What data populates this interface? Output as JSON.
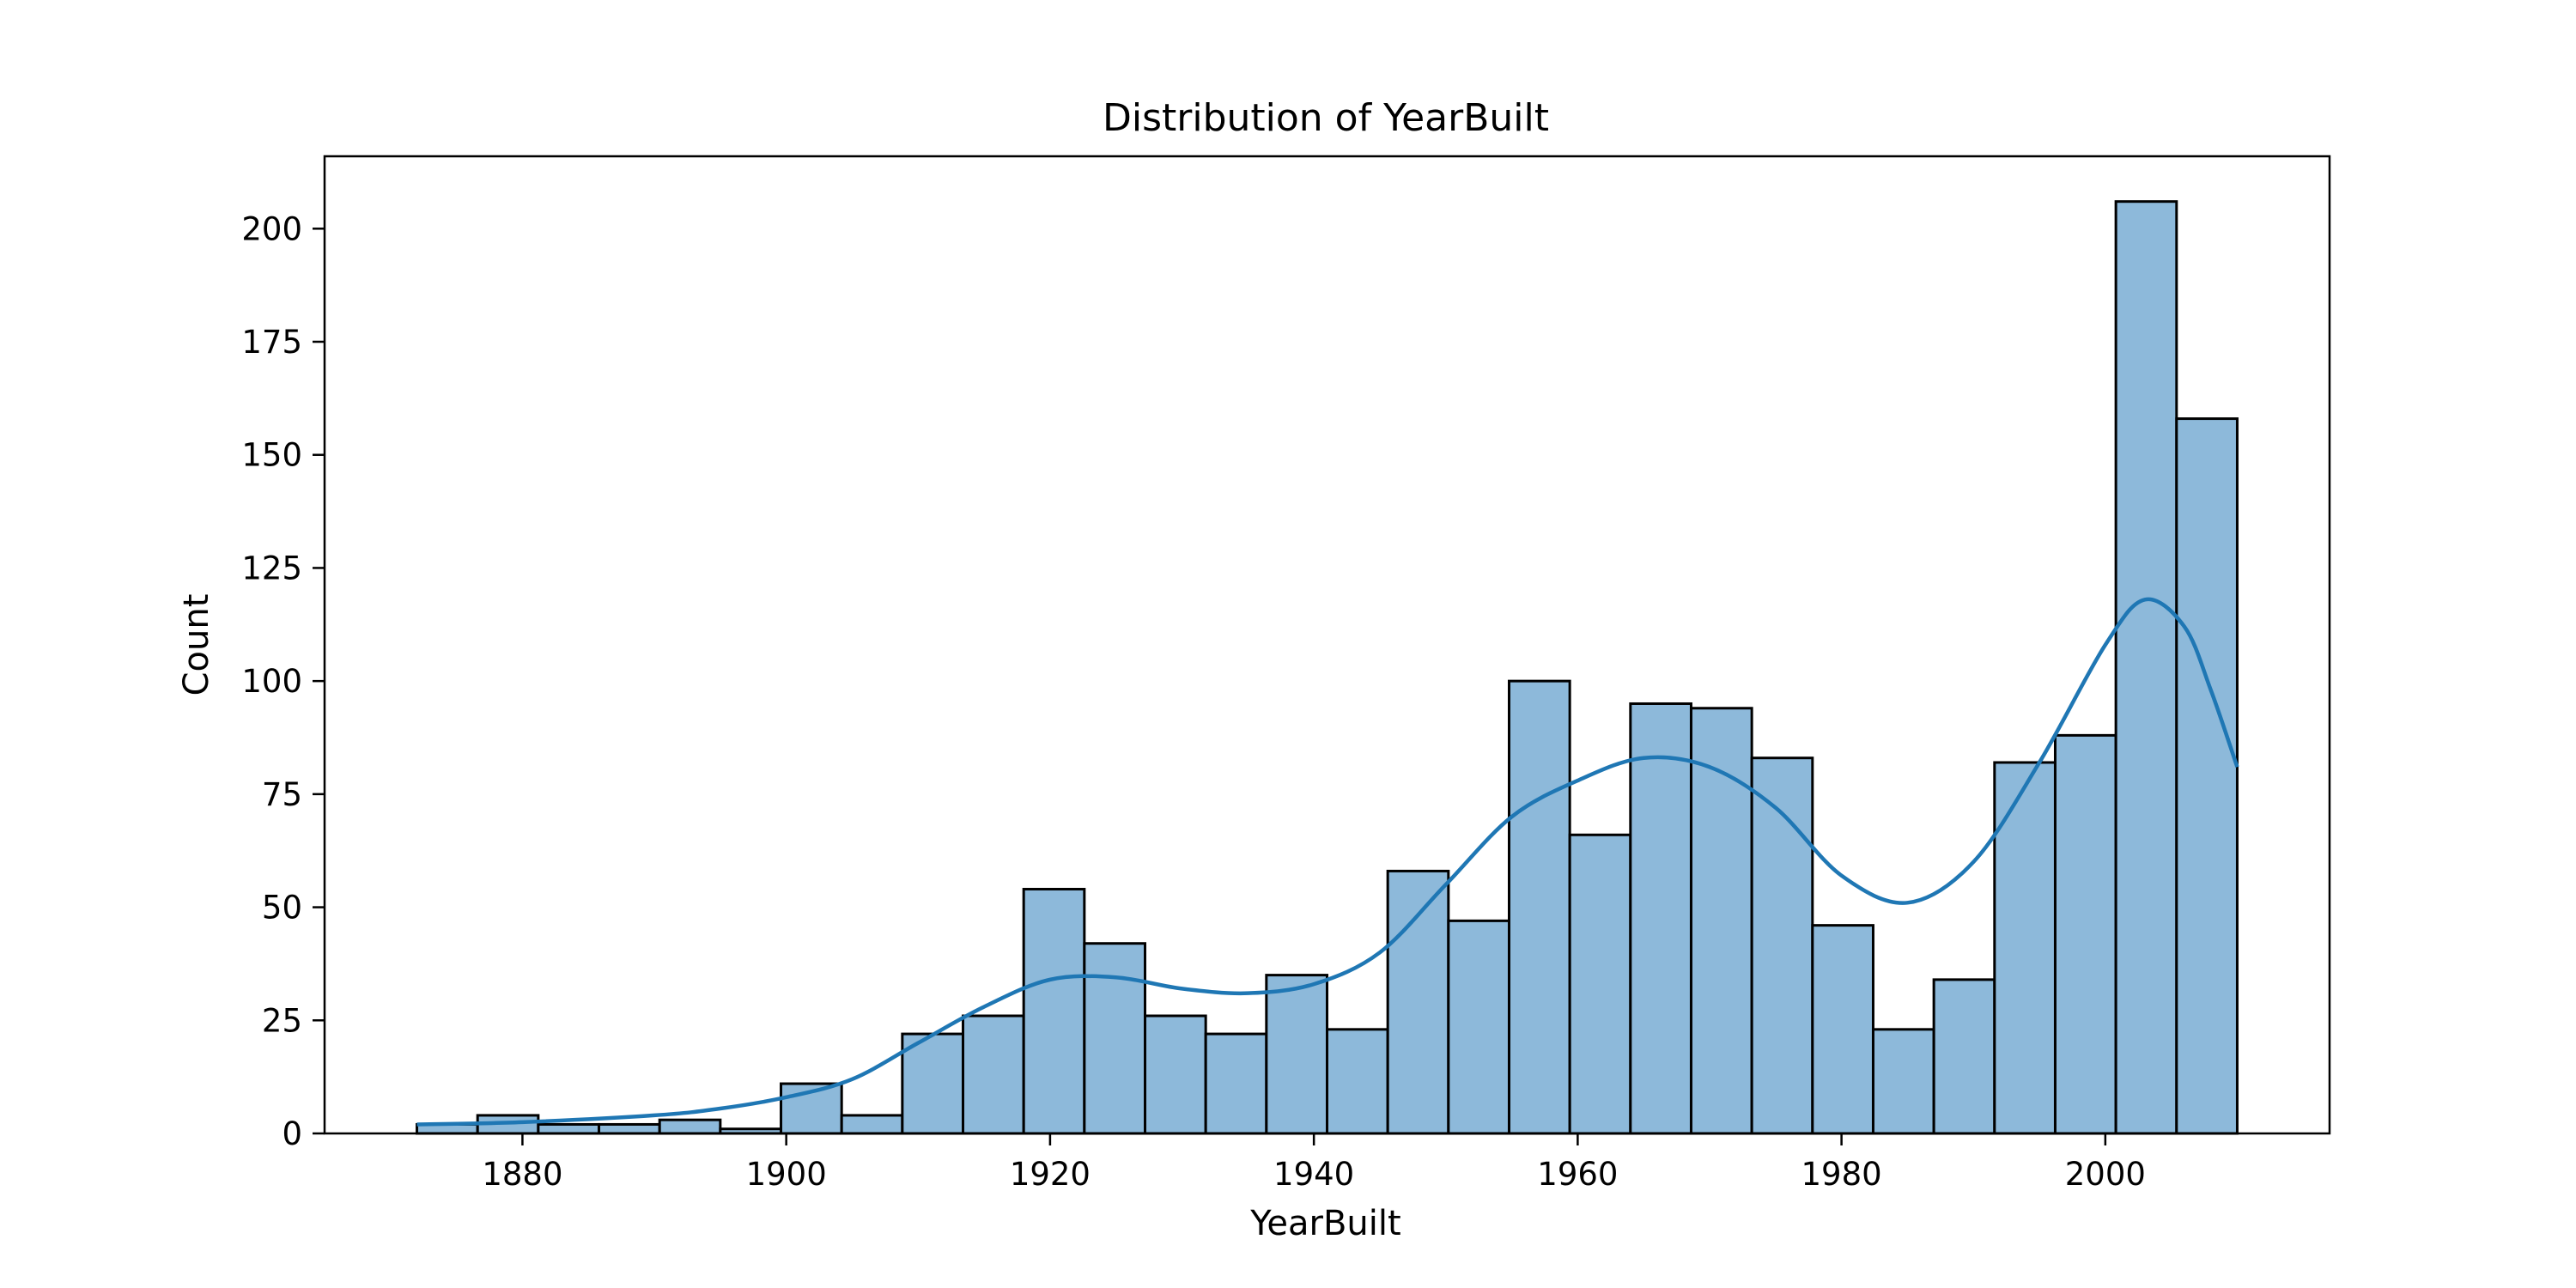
{
  "chart_data": {
    "type": "bar",
    "title": "Distribution of YearBuilt",
    "xlabel": "YearBuilt",
    "ylabel": "Count",
    "xlim": [
      1865,
      2017
    ],
    "ylim": [
      0,
      216
    ],
    "xticks": [
      1880,
      1900,
      1920,
      1940,
      1960,
      1980,
      2000
    ],
    "yticks": [
      0,
      25,
      50,
      75,
      100,
      125,
      150,
      175,
      200
    ],
    "grid": false,
    "bar_color": "#8db9da",
    "edge_color": "#000000",
    "kde_color": "#1f77b4",
    "bins": [
      {
        "start": 1872.0,
        "end": 1876.6,
        "count": 2
      },
      {
        "start": 1876.6,
        "end": 1881.2,
        "count": 4
      },
      {
        "start": 1881.2,
        "end": 1885.8,
        "count": 2
      },
      {
        "start": 1885.8,
        "end": 1890.4,
        "count": 2
      },
      {
        "start": 1890.4,
        "end": 1895.0,
        "count": 3
      },
      {
        "start": 1895.0,
        "end": 1899.6,
        "count": 1
      },
      {
        "start": 1899.6,
        "end": 1904.2,
        "count": 11
      },
      {
        "start": 1904.2,
        "end": 1908.8,
        "count": 4
      },
      {
        "start": 1908.8,
        "end": 1913.4,
        "count": 22
      },
      {
        "start": 1913.4,
        "end": 1918.0,
        "count": 26
      },
      {
        "start": 1918.0,
        "end": 1922.6,
        "count": 54
      },
      {
        "start": 1922.6,
        "end": 1927.2,
        "count": 42
      },
      {
        "start": 1927.2,
        "end": 1931.8,
        "count": 26
      },
      {
        "start": 1931.8,
        "end": 1936.4,
        "count": 22
      },
      {
        "start": 1936.4,
        "end": 1941.0,
        "count": 35
      },
      {
        "start": 1941.0,
        "end": 1945.6,
        "count": 23
      },
      {
        "start": 1945.6,
        "end": 1950.2,
        "count": 58
      },
      {
        "start": 1950.2,
        "end": 1954.8,
        "count": 47
      },
      {
        "start": 1954.8,
        "end": 1959.4,
        "count": 100
      },
      {
        "start": 1959.4,
        "end": 1964.0,
        "count": 66
      },
      {
        "start": 1964.0,
        "end": 1968.6,
        "count": 95
      },
      {
        "start": 1968.6,
        "end": 1973.2,
        "count": 94
      },
      {
        "start": 1973.2,
        "end": 1977.8,
        "count": 83
      },
      {
        "start": 1977.8,
        "end": 1982.4,
        "count": 46
      },
      {
        "start": 1982.4,
        "end": 1987.0,
        "count": 23
      },
      {
        "start": 1987.0,
        "end": 1991.6,
        "count": 34
      },
      {
        "start": 1991.6,
        "end": 1996.2,
        "count": 82
      },
      {
        "start": 1996.2,
        "end": 2000.8,
        "count": 88
      },
      {
        "start": 2000.8,
        "end": 2005.4,
        "count": 206
      },
      {
        "start": 2005.4,
        "end": 2010.0,
        "count": 158
      }
    ],
    "kde": {
      "x": [
        1872,
        1880,
        1890,
        1895,
        1900,
        1905,
        1910,
        1915,
        1920,
        1925,
        1930,
        1935,
        1940,
        1945,
        1950,
        1955,
        1960,
        1965,
        1970,
        1975,
        1980,
        1985,
        1990,
        1995,
        2000,
        2003,
        2006,
        2008,
        2010
      ],
      "y": [
        2,
        2.5,
        4,
        5.5,
        8,
        12,
        20,
        28,
        34,
        34.5,
        32,
        31,
        33,
        40,
        55,
        70,
        78,
        83,
        81,
        72,
        57,
        51,
        60,
        82,
        108,
        118,
        112,
        98,
        81
      ]
    }
  }
}
